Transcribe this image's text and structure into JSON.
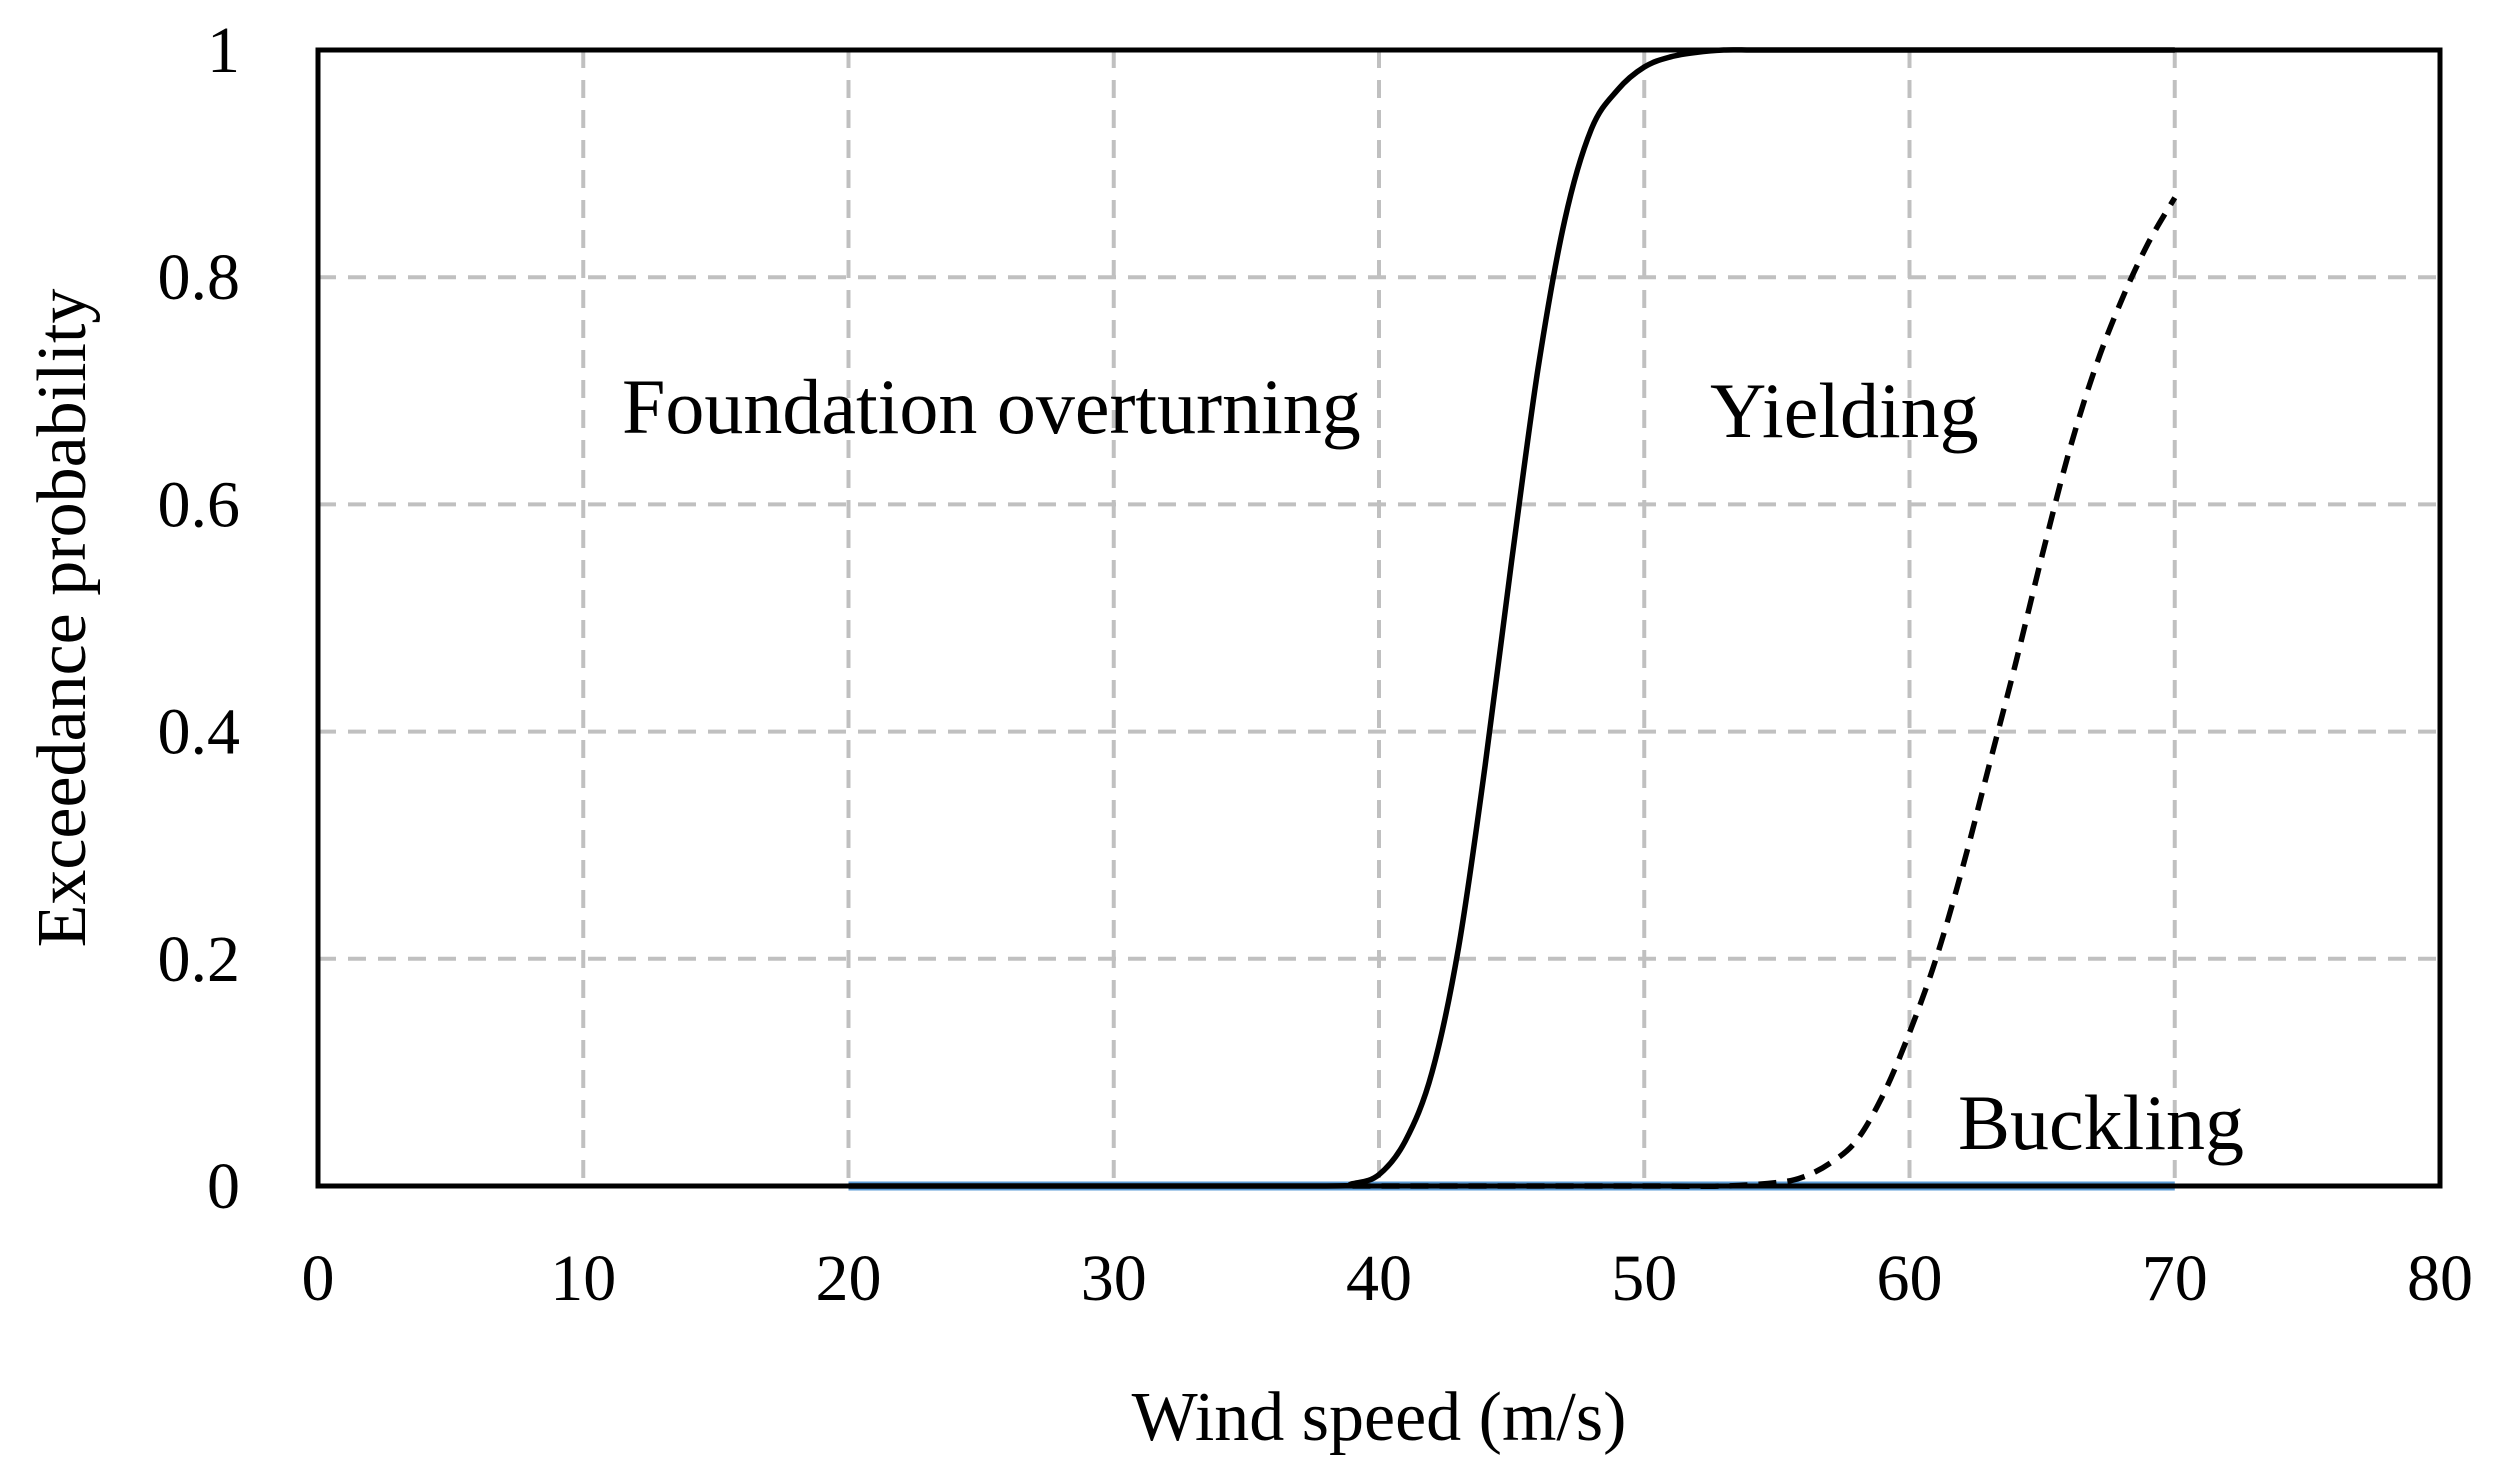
{
  "chart_data": {
    "type": "line",
    "title": "",
    "xlabel": "Wind speed (m/s)",
    "ylabel": "Exceedance probability",
    "xlim": [
      0,
      80
    ],
    "ylim": [
      0,
      1
    ],
    "x_ticks": [
      "0",
      "10",
      "20",
      "30",
      "40",
      "50",
      "60",
      "70",
      "80"
    ],
    "y_ticks": [
      "0",
      "0.2",
      "0.4",
      "0.6",
      "0.8",
      "1"
    ],
    "grid": true,
    "legend": "none",
    "annotations": [
      {
        "text": "Foundation overturning",
        "series": "Foundation overturning"
      },
      {
        "text": "Yielding",
        "series": "Yielding"
      },
      {
        "text": "Buckling",
        "series": "Buckling"
      }
    ],
    "series": [
      {
        "name": "Foundation overturning",
        "style": "solid",
        "color": "#000000",
        "x": [
          20,
          30,
          38,
          39,
          40,
          41,
          42,
          43,
          44,
          45,
          46,
          47,
          48,
          49,
          50,
          51,
          52,
          53,
          54,
          55,
          60,
          70
        ],
        "y": [
          0,
          0,
          0,
          0.002,
          0.01,
          0.04,
          0.1,
          0.21,
          0.37,
          0.55,
          0.72,
          0.85,
          0.93,
          0.965,
          0.985,
          0.994,
          0.998,
          1.0,
          1.0,
          1.0,
          1.0,
          1.0
        ]
      },
      {
        "name": "Yielding",
        "style": "dashed",
        "color": "#000000",
        "x": [
          39,
          45,
          50,
          53,
          55,
          56,
          57,
          58,
          59,
          60,
          61,
          62,
          63,
          64,
          65,
          66,
          67,
          68,
          69,
          70
        ],
        "y": [
          0,
          0,
          0,
          0,
          0.003,
          0.008,
          0.02,
          0.04,
          0.08,
          0.135,
          0.2,
          0.28,
          0.37,
          0.46,
          0.555,
          0.645,
          0.72,
          0.78,
          0.83,
          0.87
        ]
      },
      {
        "name": "Buckling",
        "style": "solid",
        "color": "#5b9bd5",
        "x": [
          20,
          30,
          40,
          50,
          60,
          70
        ],
        "y": [
          0,
          0,
          0,
          0,
          0,
          0
        ]
      }
    ]
  }
}
